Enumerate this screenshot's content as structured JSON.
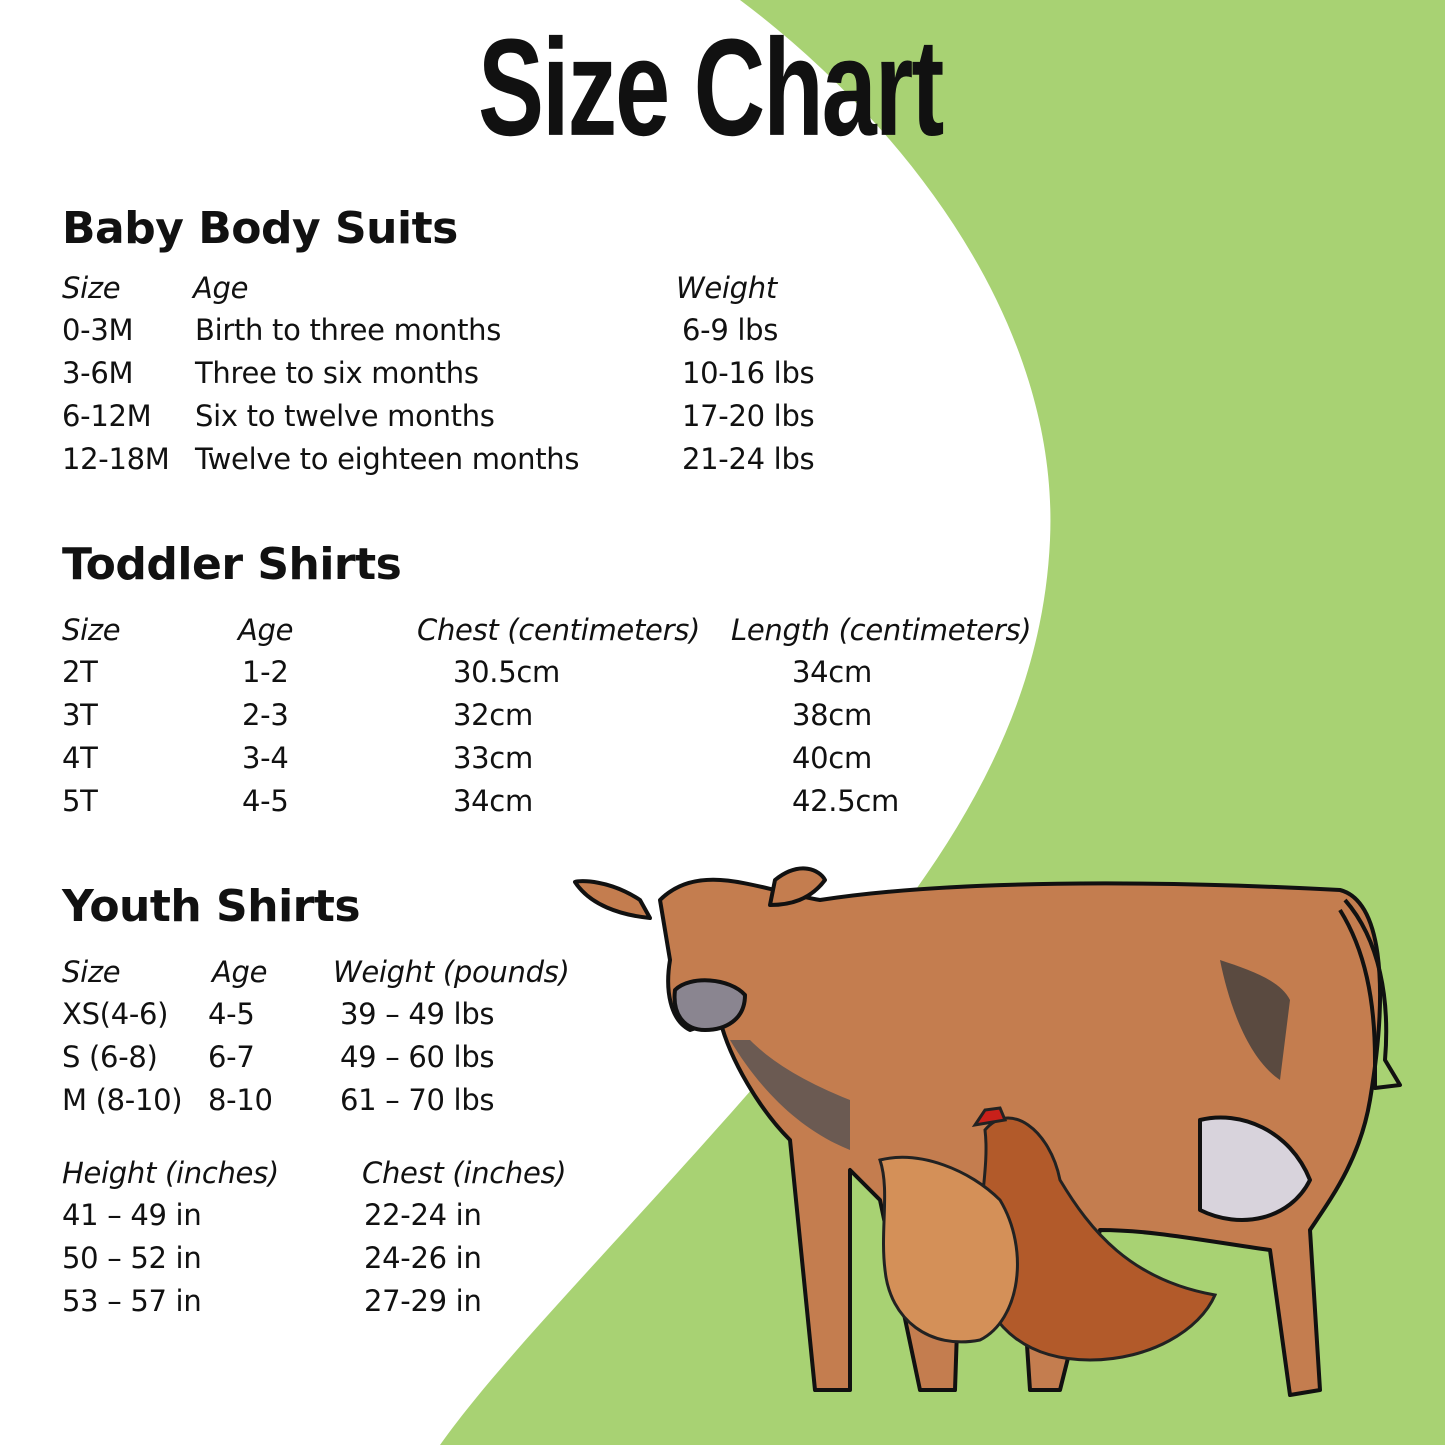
{
  "title": "Size Chart",
  "colors": {
    "background_green": "#a8d273",
    "panel_white": "#ffffff",
    "text": "#111111"
  },
  "illustration": [
    "cow",
    "chicken",
    "chicken"
  ],
  "baby": {
    "heading": "Baby Body Suits",
    "headers": [
      "Size",
      "Age",
      "Weight"
    ],
    "rows": [
      [
        "0-3M",
        "Birth to three months",
        "6-9 lbs"
      ],
      [
        "3-6M",
        "Three to six months",
        "10-16 lbs"
      ],
      [
        "6-12M",
        "Six to twelve months",
        "17-20 lbs"
      ],
      [
        "12-18M",
        "Twelve to eighteen months",
        "21-24 lbs"
      ]
    ]
  },
  "toddler": {
    "heading": "Toddler Shirts",
    "headers": [
      "Size",
      "Age",
      "Chest (centimeters)",
      "Length (centimeters)"
    ],
    "rows": [
      [
        "2T",
        "1-2",
        "30.5cm",
        "34cm"
      ],
      [
        "3T",
        "2-3",
        "32cm",
        "38cm"
      ],
      [
        "4T",
        "3-4",
        "33cm",
        "40cm"
      ],
      [
        "5T",
        "4-5",
        "34cm",
        "42.5cm"
      ]
    ]
  },
  "youth": {
    "heading": "Youth Shirts",
    "headers": [
      "Size",
      "Age",
      "Weight (pounds)"
    ],
    "rows": [
      [
        "XS(4-6)",
        "4-5",
        "39 – 49 lbs"
      ],
      [
        "S (6-8)",
        "6-7",
        "49 – 60 lbs"
      ],
      [
        "M (8-10)",
        "8-10",
        "61 – 70 lbs"
      ]
    ],
    "headers2": [
      "Height (inches)",
      "Chest (inches)"
    ],
    "rows2": [
      [
        "41 – 49 in",
        "22-24 in"
      ],
      [
        "50 – 52 in",
        "24-26 in"
      ],
      [
        "53 – 57 in",
        "27-29 in"
      ]
    ]
  }
}
